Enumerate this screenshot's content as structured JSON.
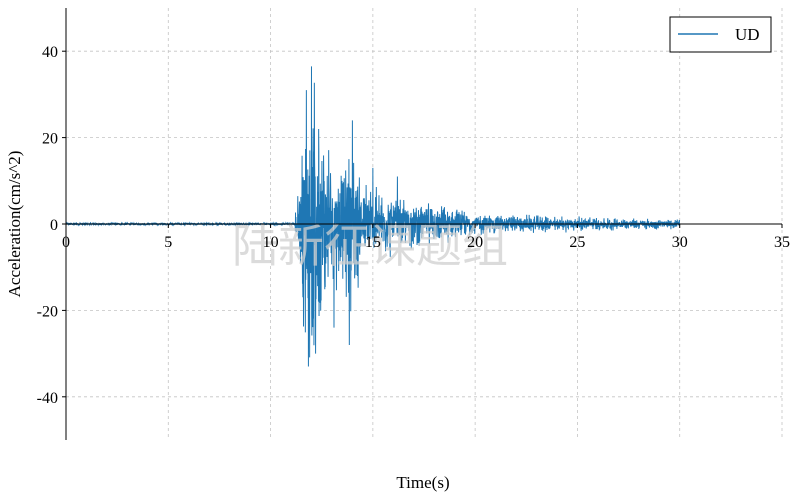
{
  "chart_data": {
    "type": "line",
    "title": "",
    "xlabel": "Time(s)",
    "ylabel": "Acceleration(cm/s^2)",
    "xlim": [
      0,
      35
    ],
    "ylim": [
      -50,
      50
    ],
    "x_ticks": [
      0,
      5,
      10,
      15,
      20,
      25,
      30,
      35
    ],
    "y_ticks": [
      -40,
      -20,
      0,
      20,
      40
    ],
    "x_tick_labels": [
      "0",
      "5",
      "10",
      "15",
      "20",
      "25",
      "30",
      "35"
    ],
    "y_tick_labels": [
      "-40",
      "-20",
      "0",
      "20",
      "40"
    ],
    "grid": true,
    "legend": {
      "position": "top-right",
      "entries": [
        "UD"
      ]
    },
    "series": [
      {
        "name": "UD",
        "color": "#1f77b4",
        "duration": 30,
        "onset": 11.2,
        "envelope": [
          [
            0,
            0.3
          ],
          [
            11.0,
            0.3
          ],
          [
            11.3,
            5
          ],
          [
            11.6,
            30
          ],
          [
            11.9,
            36
          ],
          [
            12.2,
            34
          ],
          [
            12.6,
            26
          ],
          [
            13.0,
            18
          ],
          [
            13.5,
            16
          ],
          [
            14.0,
            24
          ],
          [
            14.5,
            12
          ],
          [
            15.5,
            9
          ],
          [
            17.0,
            6
          ],
          [
            18.5,
            5
          ],
          [
            20.0,
            3
          ],
          [
            22.0,
            2.5
          ],
          [
            25.0,
            2.0
          ],
          [
            28.0,
            1.5
          ],
          [
            30.0,
            1.2
          ]
        ],
        "peaks": [
          [
            11.75,
            31
          ],
          [
            12.0,
            36.5
          ],
          [
            11.85,
            -33
          ],
          [
            12.2,
            -30
          ],
          [
            12.35,
            22
          ],
          [
            13.1,
            -24
          ],
          [
            14.0,
            24
          ],
          [
            13.85,
            -28
          ],
          [
            15.0,
            13
          ],
          [
            16.2,
            11
          ]
        ]
      }
    ]
  },
  "watermark": "陆新征课题组"
}
